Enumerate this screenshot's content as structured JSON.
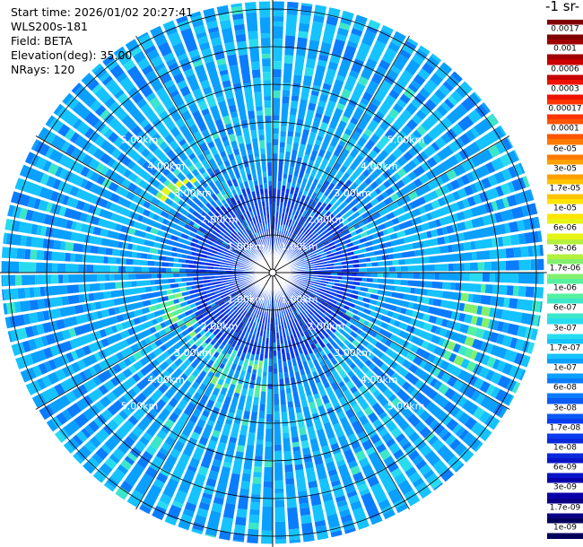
{
  "header": {
    "start_time": "Start time: 2026/01/02 20:27:41",
    "instrument": "WLS200s-181",
    "field": "Field: BETA",
    "elevation": "Elevation(deg): 35.00",
    "nrays": "NRays: 120"
  },
  "colorbar": {
    "units_label": "-1 sr-",
    "labels": [
      "0.0017",
      "0.001",
      "0.0006",
      "0.0003",
      "0.00017",
      "0.0001",
      "6e-05",
      "3e-05",
      "1.7e-05",
      "1e-05",
      "6e-06",
      "3e-06",
      "1.7e-06",
      "1e-06",
      "6e-07",
      "3e-07",
      "1.7e-07",
      "1e-07",
      "6e-08",
      "3e-08",
      "1.7e-08",
      "1e-08",
      "6e-09",
      "3e-09",
      "1.7e-09",
      "1e-09"
    ],
    "colors": [
      "#7f0000",
      "#a00000",
      "#c80000",
      "#ee1100",
      "#ff3300",
      "#ff5500",
      "#ff7a00",
      "#ffa000",
      "#ffc400",
      "#ffe500",
      "#e6f514",
      "#b4f03c",
      "#82f06e",
      "#55f0a0",
      "#3ce6c8",
      "#28dcf0",
      "#14c3ff",
      "#0aa0ff",
      "#0a7cff",
      "#0a5af5",
      "#0a3cf0",
      "#0a28dc",
      "#0a14c8",
      "#0a00aa",
      "#0a0087",
      "#00005a"
    ]
  },
  "map": {
    "range_labels": [
      "1.00km",
      "2.00km",
      "3.00km",
      "4.00km",
      "5.00km"
    ]
  }
}
